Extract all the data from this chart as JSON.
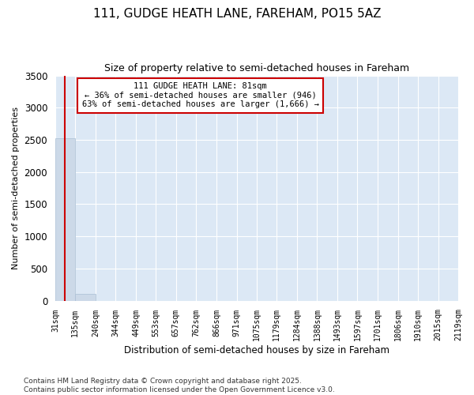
{
  "title": "111, GUDGE HEATH LANE, FAREHAM, PO15 5AZ",
  "subtitle": "Size of property relative to semi-detached houses in Fareham",
  "xlabel": "Distribution of semi-detached houses by size in Fareham",
  "ylabel": "Number of semi-detached properties",
  "bar_values": [
    2530,
    100,
    0,
    0,
    0,
    0,
    0,
    0,
    0,
    0,
    0,
    0,
    0,
    0,
    0,
    0,
    0,
    0,
    0,
    0
  ],
  "bin_edges": [
    31,
    135,
    240,
    344,
    449,
    553,
    657,
    762,
    866,
    971,
    1075,
    1179,
    1284,
    1388,
    1493,
    1597,
    1701,
    1806,
    1910,
    2015,
    2119
  ],
  "bar_color": "#ccd9e8",
  "bar_edge_color": "#aabfd4",
  "property_value": 81,
  "red_line_color": "#cc0000",
  "annotation_line1": "111 GUDGE HEATH LANE: 81sqm",
  "annotation_line2": "← 36% of semi-detached houses are smaller (946)",
  "annotation_line3": "63% of semi-detached houses are larger (1,666) →",
  "annotation_box_color": "#ffffff",
  "annotation_edge_color": "#cc0000",
  "ylim": [
    0,
    3500
  ],
  "yticks": [
    0,
    500,
    1000,
    1500,
    2000,
    2500,
    3000,
    3500
  ],
  "plot_bg_color": "#dce8f5",
  "figure_bg_color": "#ffffff",
  "grid_color": "#ffffff",
  "footer_line1": "Contains HM Land Registry data © Crown copyright and database right 2025.",
  "footer_line2": "Contains public sector information licensed under the Open Government Licence v3.0."
}
